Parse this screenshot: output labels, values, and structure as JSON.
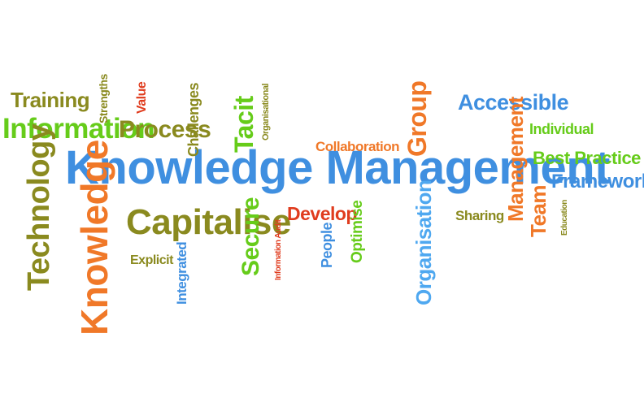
{
  "colors": {
    "blue": "#3f8fe0",
    "green": "#66cc1a",
    "orange": "#f07828",
    "olive": "#8a8a1f",
    "red": "#e03c1e",
    "light_blue": "#4fa8f0"
  },
  "words": {
    "knowledge_management": "Knowledge Management",
    "information": "Information",
    "training": "Training",
    "strengths": "Strengths",
    "value": "Value",
    "process": "Process",
    "challenges": "Challenges",
    "tacit": "Tacit",
    "organisational": "Organisational",
    "technology": "Technology",
    "knowledge": "Knowledge",
    "capitalise": "Capitalise",
    "explicit": "Explicit",
    "integrated": "Integrated",
    "secure": "Secure",
    "information_audit": "Information Audit",
    "develop": "Develop",
    "people": "People",
    "optimise": "Optimise",
    "collaboration": "Collaboration",
    "group": "Group",
    "organisation": "Organisation",
    "accessible": "Accessible",
    "management": "Management",
    "individual": "Individual",
    "best_practice": "Best Practice",
    "framework": "Framework",
    "team": "Team",
    "education": "Education",
    "sharing": "Sharing"
  }
}
